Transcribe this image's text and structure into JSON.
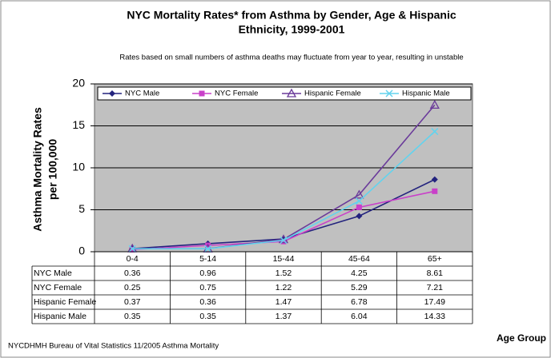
{
  "chart_data": {
    "type": "line",
    "title": [
      "NYC Mortality Rates* from Asthma  by Gender, Age & Hispanic",
      "Ethnicity, 1999-2001"
    ],
    "subtitle": "Rates based on small numbers of asthma deaths may fluctuate from year to year, resulting in unstable",
    "y_label": [
      "Asthma Mortality Rates",
      "per 100,000"
    ],
    "x_label": "Age Group",
    "source": "NYCDHMH Bureau of Vital Statistics 11/2005 Asthma Mortality",
    "categories": [
      "0-4",
      "5-14",
      "15-44",
      "45-64",
      "65+"
    ],
    "series": [
      {
        "name": "NYC Male",
        "color": "#23237e",
        "marker": "diamond",
        "values": [
          0.36,
          0.96,
          1.52,
          4.25,
          8.61
        ]
      },
      {
        "name": "NYC Female",
        "color": "#c940c9",
        "marker": "square",
        "values": [
          0.25,
          0.75,
          1.22,
          5.29,
          7.21
        ]
      },
      {
        "name": "Hispanic Female",
        "color": "#6a3a9a",
        "marker": "triangle",
        "values": [
          0.37,
          0.36,
          1.47,
          6.78,
          17.49
        ]
      },
      {
        "name": "Hispanic Male",
        "color": "#62d3ee",
        "marker": "x",
        "values": [
          0.35,
          0.35,
          1.37,
          6.04,
          14.33
        ]
      }
    ],
    "ylim": [
      0,
      20
    ],
    "yticks": [
      0,
      5,
      10,
      15,
      20
    ],
    "grid": true,
    "legend": "top"
  }
}
